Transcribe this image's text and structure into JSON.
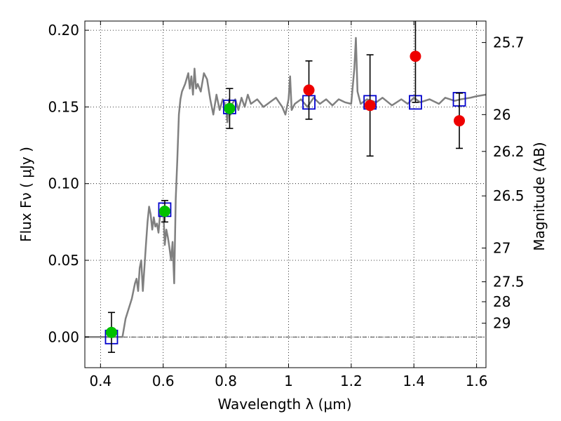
{
  "chart_data": {
    "type": "scatter",
    "xlabel": "Wavelength  λ (μm)",
    "ylabel": "Flux  Fν  ( μJy )",
    "y2label": "Magnitude (AB)",
    "xlim": [
      0.35,
      1.63
    ],
    "ylim": [
      -0.02,
      0.206
    ],
    "grid": true,
    "x_ticks": [
      0.4,
      0.6,
      0.8,
      1.0,
      1.2,
      1.4,
      1.6
    ],
    "x_tick_labels": [
      "0.4",
      "0.6",
      "0.8",
      "1",
      "1.2",
      "1.4",
      "1.6"
    ],
    "y_ticks": [
      0.0,
      0.05,
      0.1,
      0.15,
      0.2
    ],
    "y_tick_labels": [
      "0.00",
      "0.05",
      "0.10",
      "0.15",
      "0.20"
    ],
    "magnitude_ticks": [
      {
        "label": "25.7",
        "flux": 0.192
      },
      {
        "label": "26",
        "flux": 0.145
      },
      {
        "label": "26.2",
        "flux": 0.121
      },
      {
        "label": "26.5",
        "flux": 0.092
      },
      {
        "label": "27",
        "flux": 0.058
      },
      {
        "label": "27.5",
        "flux": 0.036
      },
      {
        "label": "28",
        "flux": 0.023
      },
      {
        "label": "29",
        "flux": 0.009
      }
    ],
    "zero_line": 0.0,
    "series": [
      {
        "kind": "line",
        "color": "#808080",
        "x": [
          0.35,
          0.47,
          0.48,
          0.5,
          0.51,
          0.515,
          0.52,
          0.525,
          0.53,
          0.535,
          0.54,
          0.545,
          0.55,
          0.555,
          0.56,
          0.565,
          0.57,
          0.575,
          0.58,
          0.585,
          0.59,
          0.6,
          0.605,
          0.61,
          0.615,
          0.62,
          0.625,
          0.63,
          0.635,
          0.64,
          0.645,
          0.65,
          0.655,
          0.66,
          0.67,
          0.68,
          0.685,
          0.69,
          0.695,
          0.7,
          0.705,
          0.71,
          0.72,
          0.73,
          0.74,
          0.75,
          0.76,
          0.77,
          0.78,
          0.79,
          0.8,
          0.805,
          0.81,
          0.815,
          0.82,
          0.83,
          0.84,
          0.85,
          0.86,
          0.87,
          0.88,
          0.9,
          0.92,
          0.94,
          0.96,
          0.98,
          0.99,
          1.0,
          1.005,
          1.01,
          1.02,
          1.04,
          1.06,
          1.08,
          1.1,
          1.12,
          1.14,
          1.16,
          1.18,
          1.2,
          1.21,
          1.215,
          1.22,
          1.23,
          1.25,
          1.28,
          1.3,
          1.33,
          1.36,
          1.38,
          1.4,
          1.42,
          1.45,
          1.48,
          1.5,
          1.53,
          1.55,
          1.58,
          1.6,
          1.63
        ],
        "y": [
          0.0,
          0.0,
          0.012,
          0.025,
          0.035,
          0.038,
          0.03,
          0.045,
          0.05,
          0.03,
          0.045,
          0.06,
          0.075,
          0.085,
          0.08,
          0.07,
          0.078,
          0.072,
          0.074,
          0.068,
          0.08,
          0.085,
          0.06,
          0.07,
          0.065,
          0.058,
          0.05,
          0.062,
          0.035,
          0.09,
          0.115,
          0.145,
          0.155,
          0.16,
          0.165,
          0.172,
          0.162,
          0.17,
          0.158,
          0.175,
          0.162,
          0.165,
          0.16,
          0.172,
          0.168,
          0.155,
          0.145,
          0.158,
          0.148,
          0.155,
          0.15,
          0.14,
          0.155,
          0.145,
          0.152,
          0.155,
          0.148,
          0.156,
          0.15,
          0.158,
          0.152,
          0.155,
          0.15,
          0.153,
          0.156,
          0.15,
          0.145,
          0.155,
          0.17,
          0.148,
          0.152,
          0.155,
          0.15,
          0.156,
          0.152,
          0.155,
          0.151,
          0.155,
          0.153,
          0.152,
          0.175,
          0.195,
          0.16,
          0.152,
          0.155,
          0.153,
          0.156,
          0.151,
          0.155,
          0.152,
          0.156,
          0.153,
          0.155,
          0.152,
          0.156,
          0.154,
          0.155,
          0.156,
          0.157,
          0.158
        ]
      },
      {
        "kind": "open_square",
        "color": "#0000cc",
        "x": [
          0.435,
          0.605,
          0.812,
          1.065,
          1.26,
          1.405,
          1.545
        ],
        "y": [
          0.0,
          0.083,
          0.15,
          0.153,
          0.153,
          0.153,
          0.155
        ]
      },
      {
        "kind": "filled_circle",
        "color": "#00c000",
        "x": [
          0.435,
          0.605,
          0.812
        ],
        "y": [
          0.003,
          0.082,
          0.149
        ],
        "err": [
          0.013,
          0.007,
          0.013
        ]
      },
      {
        "kind": "filled_circle",
        "color": "#ee0000",
        "x": [
          1.065,
          1.26,
          1.405,
          1.545
        ],
        "y": [
          0.161,
          0.151,
          0.183,
          0.141
        ],
        "err": [
          0.019,
          0.033,
          0.03,
          0.018
        ]
      }
    ]
  }
}
